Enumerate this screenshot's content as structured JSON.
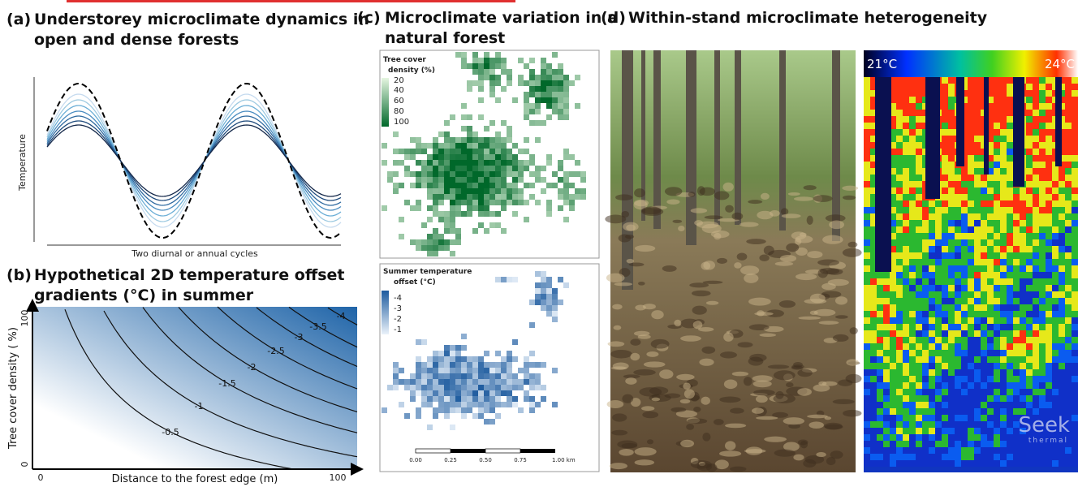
{
  "panel_a": {
    "label": "(a)",
    "title_lines": [
      "Understorey microclimate dynamics in",
      "open and dense forests"
    ],
    "y_axis_label": "Temperature",
    "x_axis_label": "Two diurnal or annual cycles"
  },
  "panel_b": {
    "label": "(b)",
    "title_lines": [
      "Hypothetical 2D temperature offset",
      "gradients (°C) in summer"
    ],
    "y_axis_label": "Tree cover density ( %)",
    "y_tick_labels": [
      "0",
      "100"
    ],
    "x_axis_label": "Distance to the forest edge (m)",
    "x_tick_labels": [
      "0",
      "100"
    ],
    "contour_labels": [
      "-0.5",
      "-1",
      "-1.5",
      "-2",
      "-2.5",
      "-3",
      "-3.5",
      "-4"
    ]
  },
  "panel_c": {
    "label": "(c)",
    "title_lines": [
      "Microclimate variation in a",
      "natural forest"
    ],
    "top_map": {
      "legend_title_lines": [
        "Tree cover",
        "density (%)"
      ],
      "legend_labels": [
        "20",
        "40",
        "60",
        "80",
        "100"
      ]
    },
    "bottom_map": {
      "legend_title_lines": [
        "Summer temperature",
        "offset (°C)"
      ],
      "legend_labels": [
        "-4",
        "-3",
        "-2",
        "-1"
      ],
      "scale_labels": [
        "0.00",
        "0.25",
        "0.50",
        "0.75",
        "1.00 km"
      ]
    }
  },
  "panel_d": {
    "label": "(d)",
    "title": "Within-stand microclimate heterogeneity",
    "thermal_min_label": "21°C",
    "thermal_max_label": "24°C",
    "logo_lines": [
      "Seek",
      "thermal"
    ]
  }
}
